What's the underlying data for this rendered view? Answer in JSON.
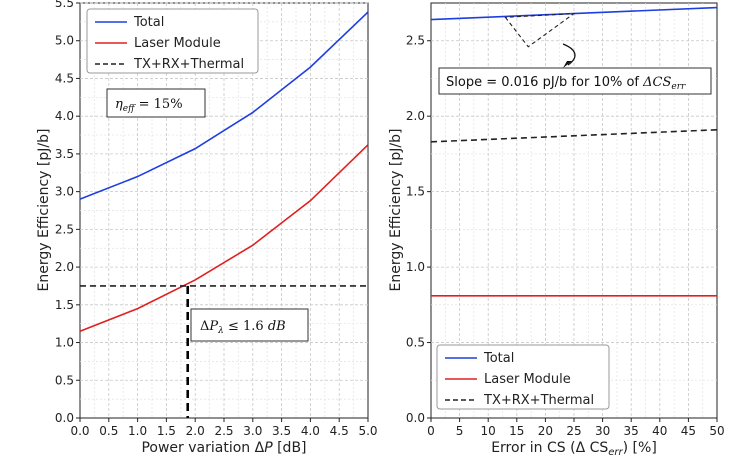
{
  "colors": {
    "total": "#1f3ee0",
    "laser": "#e02020",
    "txrx": "#222222",
    "grid": "#c8c8c8"
  },
  "chart_data": [
    {
      "type": "line",
      "xlabel": "Power variation ΔP [dB]",
      "ylabel": "Energy Efficiency [pJ/b]",
      "xlim": [
        0,
        5
      ],
      "ylim": [
        0,
        5.5
      ],
      "xticks": [
        0,
        0.5,
        1,
        1.5,
        2,
        2.5,
        3,
        3.5,
        4,
        4.5,
        5
      ],
      "xtick_labels": [
        "0.0",
        "0.5",
        "1.0",
        "1.5",
        "2.0",
        "2.5",
        "3.0",
        "3.5",
        "4.0",
        "4.5",
        "5.0"
      ],
      "yticks": [
        0,
        0.5,
        1,
        1.5,
        2,
        2.5,
        3,
        3.5,
        4,
        4.5,
        5,
        5.5
      ],
      "ytick_labels": [
        "0.0",
        "0.5",
        "1.0",
        "1.5",
        "2.0",
        "2.5",
        "3.0",
        "3.5",
        "4.0",
        "4.5",
        "5.0",
        "5.5"
      ],
      "grid": true,
      "legend_position": "top-left",
      "series": [
        {
          "name": "Total",
          "style": "solid",
          "color_key": "total",
          "x": [
            0,
            1,
            2,
            3,
            4,
            5
          ],
          "y": [
            2.9,
            3.2,
            3.57,
            4.05,
            4.65,
            5.38
          ]
        },
        {
          "name": "Laser Module",
          "style": "solid",
          "color_key": "laser",
          "x": [
            0,
            1,
            2,
            3,
            4,
            5
          ],
          "y": [
            1.15,
            1.45,
            1.83,
            2.29,
            2.88,
            3.62
          ]
        },
        {
          "name": "TX+RX+Thermal",
          "style": "dashed",
          "color_key": "txrx",
          "x": [
            0,
            5
          ],
          "y": [
            1.75,
            1.75
          ]
        }
      ],
      "guide": {
        "x": 1.87,
        "y": 1.75
      },
      "annotations": {
        "eta": "η_eff = 15%",
        "delta_p": "ΔP_λ ≤ 1.6 dB"
      }
    },
    {
      "type": "line",
      "xlabel": "Error in CS (Δ CS_err) [%]",
      "ylabel": "Energy Efficiency [pJ/b]",
      "xlim": [
        0,
        50
      ],
      "ylim": [
        0,
        2.75
      ],
      "xticks": [
        0,
        5,
        10,
        15,
        20,
        25,
        30,
        35,
        40,
        45,
        50
      ],
      "xtick_labels": [
        "0",
        "5",
        "10",
        "15",
        "20",
        "25",
        "30",
        "35",
        "40",
        "45",
        "50"
      ],
      "yticks": [
        0,
        0.5,
        1,
        1.5,
        2,
        2.5
      ],
      "ytick_labels": [
        "0.0",
        "0.5",
        "1.0",
        "1.5",
        "2.0",
        "2.5"
      ],
      "grid": true,
      "legend_position": "bottom-left",
      "series": [
        {
          "name": "Total",
          "style": "solid",
          "color_key": "total",
          "x": [
            0,
            50
          ],
          "y": [
            2.64,
            2.72
          ]
        },
        {
          "name": "Laser Module",
          "style": "solid",
          "color_key": "laser",
          "x": [
            0,
            50
          ],
          "y": [
            0.81,
            0.81
          ]
        },
        {
          "name": "TX+RX+Thermal",
          "style": "dashed",
          "color_key": "txrx",
          "x": [
            0,
            50
          ],
          "y": [
            1.83,
            1.91
          ]
        }
      ],
      "slope_triangle": {
        "x": [
          13,
          17,
          25
        ],
        "y": [
          2.655,
          2.46,
          2.68
        ]
      },
      "annotations": {
        "slope": "Slope = 0.016 pJ/b for 10% of ΔCS_err"
      }
    }
  ]
}
